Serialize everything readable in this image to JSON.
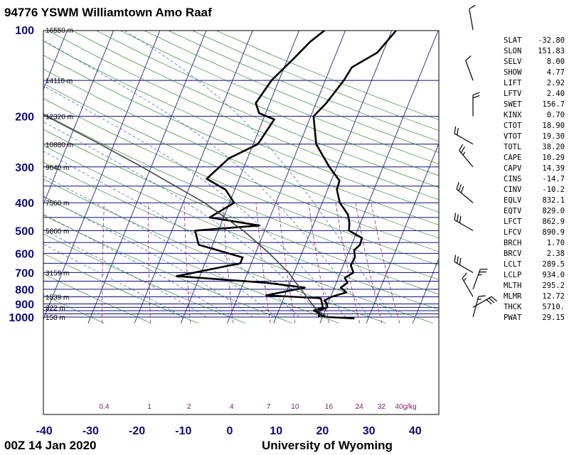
{
  "header": {
    "title": "94776 YSWM Williamtown Amo Raaf"
  },
  "footer": {
    "left": "00Z 14 Jan 2020",
    "right": "University of Wyoming"
  },
  "indices": [
    {
      "label": "SLAT",
      "value": "-32.80"
    },
    {
      "label": "SLON",
      "value": "151.83"
    },
    {
      "label": "SELV",
      "value": "8.00"
    },
    {
      "label": "SHOW",
      "value": "4.77"
    },
    {
      "label": "LIFT",
      "value": "2.92"
    },
    {
      "label": "LFTV",
      "value": "2.40"
    },
    {
      "label": "SWET",
      "value": "156.7"
    },
    {
      "label": "KINX",
      "value": "0.70"
    },
    {
      "label": "CTOT",
      "value": "18.90"
    },
    {
      "label": "VTOT",
      "value": "19.30"
    },
    {
      "label": "TOTL",
      "value": "38.20"
    },
    {
      "label": "CAPE",
      "value": "10.29"
    },
    {
      "label": "CAPV",
      "value": "14.39"
    },
    {
      "label": "CINS",
      "value": "-14.7"
    },
    {
      "label": "CINV",
      "value": "-10.2"
    },
    {
      "label": "EQLV",
      "value": "832.1"
    },
    {
      "label": "EQTV",
      "value": "829.0"
    },
    {
      "label": "LFCT",
      "value": "862.9"
    },
    {
      "label": "LFCV",
      "value": "890.9"
    },
    {
      "label": "BRCH",
      "value": "1.70"
    },
    {
      "label": "BRCV",
      "value": "2.38"
    },
    {
      "label": "LCLT",
      "value": "289.5"
    },
    {
      "label": "LCLP",
      "value": "934.0"
    },
    {
      "label": "MLTH",
      "value": "295.2"
    },
    {
      "label": "MLMR",
      "value": "12.72"
    },
    {
      "label": "THCK",
      "value": "5710."
    },
    {
      "label": "PWAT",
      "value": "29.15"
    }
  ],
  "chart_data": {
    "type": "line",
    "chart_kind": "skew-T log-P",
    "x_ticks": [
      -40,
      -30,
      -20,
      -10,
      0,
      10,
      20,
      30,
      40
    ],
    "y_ticks": [
      100,
      200,
      300,
      400,
      500,
      600,
      700,
      800,
      900,
      1000
    ],
    "xlim": [
      -40,
      45
    ],
    "ylim": [
      1050,
      100
    ],
    "y_scale": "log",
    "grid": true,
    "height_labels": [
      {
        "p": 100,
        "label": "16550 m"
      },
      {
        "p": 150,
        "label": "14110 m"
      },
      {
        "p": 200,
        "label": "12320 m"
      },
      {
        "p": 250,
        "label": "10880 m"
      },
      {
        "p": 300,
        "label": "9640 m"
      },
      {
        "p": 400,
        "label": "7560 m"
      },
      {
        "p": 500,
        "label": "5860 m"
      },
      {
        "p": 700,
        "label": "3159 m"
      },
      {
        "p": 850,
        "label": "1539 m"
      },
      {
        "p": 925,
        "label": "822 m"
      },
      {
        "p": 1000,
        "label": "150 m"
      }
    ],
    "mixing_ratio_labels": [
      "0.4",
      "1",
      "2",
      "4",
      "7",
      "10",
      "16",
      "24",
      "32",
      "40g/kg"
    ],
    "series": [
      {
        "name": "temperature",
        "points": [
          {
            "p": 1011,
            "t": 27.0
          },
          {
            "p": 1000,
            "t": 21.2
          },
          {
            "p": 990,
            "t": 19.8
          },
          {
            "p": 970,
            "t": 18.8
          },
          {
            "p": 950,
            "t": 18.6
          },
          {
            "p": 925,
            "t": 20.2
          },
          {
            "p": 900,
            "t": 19.8
          },
          {
            "p": 875,
            "t": 19.0
          },
          {
            "p": 850,
            "t": 20.2
          },
          {
            "p": 820,
            "t": 23.0
          },
          {
            "p": 790,
            "t": 21.4
          },
          {
            "p": 760,
            "t": 22.4
          },
          {
            "p": 730,
            "t": 21.4
          },
          {
            "p": 700,
            "t": 22.8
          },
          {
            "p": 660,
            "t": 21.6
          },
          {
            "p": 620,
            "t": 21.8
          },
          {
            "p": 585,
            "t": 21.0
          },
          {
            "p": 560,
            "t": 21.8
          },
          {
            "p": 530,
            "t": 21.6
          },
          {
            "p": 500,
            "t": 18.2
          },
          {
            "p": 470,
            "t": 17.6
          },
          {
            "p": 440,
            "t": 16.6
          },
          {
            "p": 400,
            "t": 13.8
          },
          {
            "p": 360,
            "t": 12.0
          },
          {
            "p": 335,
            "t": 11.8
          },
          {
            "p": 300,
            "t": 8.4
          },
          {
            "p": 250,
            "t": 3.6
          },
          {
            "p": 200,
            "t": 0.6
          },
          {
            "p": 180,
            "t": 2.2
          },
          {
            "p": 150,
            "t": 4.0
          },
          {
            "p": 135,
            "t": 4.6
          },
          {
            "p": 120,
            "t": 8.8
          },
          {
            "p": 100,
            "t": 11.0
          }
        ]
      },
      {
        "name": "dewpoint",
        "points": [
          {
            "p": 1000,
            "t": 19.2
          },
          {
            "p": 970,
            "t": 19.0
          },
          {
            "p": 950,
            "t": 17.6
          },
          {
            "p": 925,
            "t": 19.2
          },
          {
            "p": 900,
            "t": 18.8
          },
          {
            "p": 860,
            "t": 18.0
          },
          {
            "p": 840,
            "t": 6.0
          },
          {
            "p": 790,
            "t": 13.6
          },
          {
            "p": 760,
            "t": 5.0
          },
          {
            "p": 720,
            "t": -15.0
          },
          {
            "p": 650,
            "t": -2.4
          },
          {
            "p": 620,
            "t": -2.4
          },
          {
            "p": 560,
            "t": -13.0
          },
          {
            "p": 500,
            "t": -15.0
          },
          {
            "p": 480,
            "t": -1.6
          },
          {
            "p": 450,
            "t": -13.0
          },
          {
            "p": 400,
            "t": -9.0
          },
          {
            "p": 360,
            "t": -12.0
          },
          {
            "p": 330,
            "t": -17.0
          },
          {
            "p": 280,
            "t": -14.0
          },
          {
            "p": 250,
            "t": -9.0
          },
          {
            "p": 205,
            "t": -7.6
          },
          {
            "p": 195,
            "t": -11.4
          },
          {
            "p": 180,
            "t": -13.0
          },
          {
            "p": 150,
            "t": -11.6
          },
          {
            "p": 125,
            "t": -8.6
          },
          {
            "p": 110,
            "t": -6.6
          },
          {
            "p": 100,
            "t": -4.4
          }
        ]
      },
      {
        "name": "parcel",
        "points": [
          {
            "p": 1000,
            "t": 21.0
          },
          {
            "p": 934,
            "t": 17.8
          },
          {
            "p": 850,
            "t": 14.8
          },
          {
            "p": 700,
            "t": 8.8
          },
          {
            "p": 600,
            "t": 3.0
          },
          {
            "p": 500,
            "t": -4.6
          },
          {
            "p": 400,
            "t": -15.4
          },
          {
            "p": 300,
            "t": -32.0
          },
          {
            "p": 250,
            "t": -43.0
          },
          {
            "p": 200,
            "t": -57.0
          },
          {
            "p": 150,
            "t": -72.0
          },
          {
            "p": 100,
            "t": -90.0
          }
        ]
      }
    ],
    "wind_barbs": [
      {
        "p": 1000,
        "dir_deg": 15,
        "speed_kt": 15
      },
      {
        "p": 925,
        "dir_deg": 60,
        "speed_kt": 30
      },
      {
        "p": 850,
        "dir_deg": 330,
        "speed_kt": 15
      },
      {
        "p": 800,
        "dir_deg": 20,
        "speed_kt": 25
      },
      {
        "p": 700,
        "dir_deg": 300,
        "speed_kt": 30
      },
      {
        "p": 500,
        "dir_deg": 300,
        "speed_kt": 30
      },
      {
        "p": 400,
        "dir_deg": 310,
        "speed_kt": 30
      },
      {
        "p": 300,
        "dir_deg": 320,
        "speed_kt": 25
      },
      {
        "p": 250,
        "dir_deg": 300,
        "speed_kt": 20
      },
      {
        "p": 200,
        "dir_deg": 0,
        "speed_kt": 20
      },
      {
        "p": 150,
        "dir_deg": 340,
        "speed_kt": 10
      },
      {
        "p": 100,
        "dir_deg": 350,
        "speed_kt": 10
      }
    ]
  }
}
